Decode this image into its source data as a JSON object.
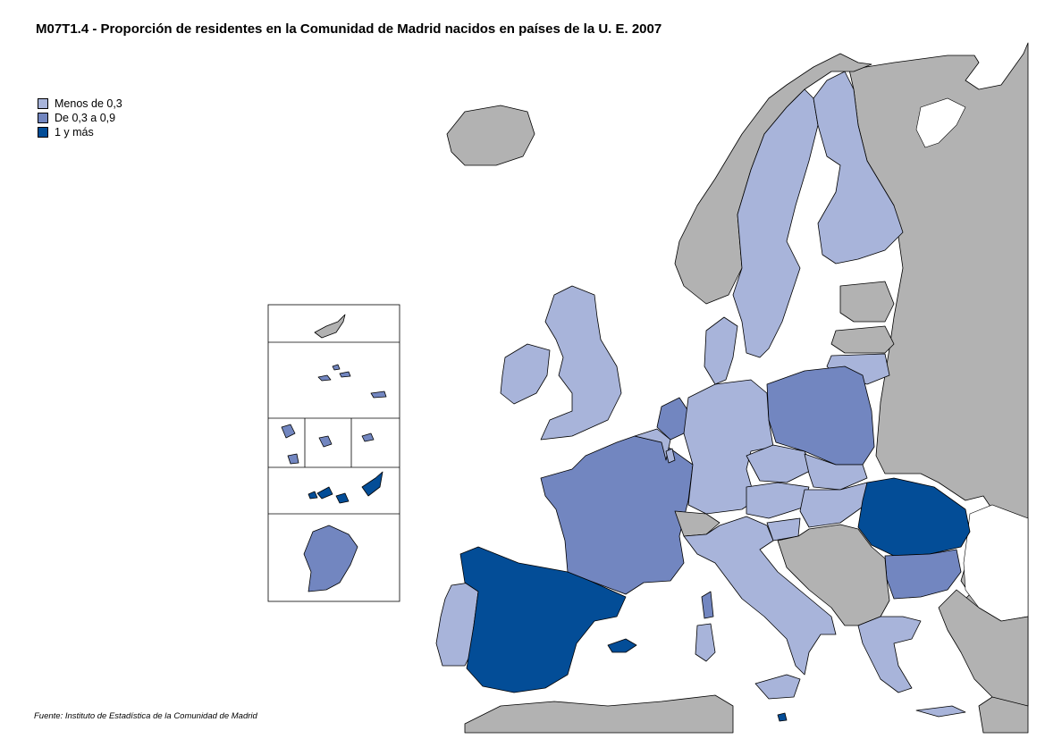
{
  "title": "M07T1.4 - Proporción de residentes en la Comunidad de Madrid nacidos en países de la U. E. 2007",
  "legend": [
    {
      "label": "Menos de 0,3",
      "color": "#a8b4da"
    },
    {
      "label": "De 0,3 a 0,9",
      "color": "#7286c0"
    },
    {
      "label": "1 y más",
      "color": "#034d97"
    }
  ],
  "colors": {
    "non_eu": "#b2b2b2",
    "low": "#a8b4da",
    "mid": "#7286c0",
    "high": "#034d97",
    "sea": "#ffffff",
    "border": "#000000"
  },
  "source": "Fuente: Instituto de Estadística de la Comunidad de Madrid",
  "map_data": {
    "Spain": "high",
    "Romania": "high",
    "Malta": "high",
    "Portugal": "low",
    "France": "mid",
    "Poland": "mid",
    "Bulgaria": "mid",
    "Netherlands": "mid",
    "Germany": "low",
    "Italy": "low",
    "United Kingdom": "low",
    "Ireland": "low",
    "Belgium": "low",
    "Luxembourg": "low",
    "Austria": "low",
    "Czech Republic": "low",
    "Slovakia": "low",
    "Hungary": "low",
    "Slovenia": "low",
    "Greece": "low",
    "Sweden": "low",
    "Finland": "low",
    "Denmark": "low",
    "Lithuania": "low",
    "Latvia": "non_eu",
    "Estonia": "non_eu",
    "Cyprus": "non_eu",
    "Norway": "non_eu",
    "Iceland": "non_eu",
    "Switzerland": "non_eu",
    "Russia": "non_eu",
    "Turkey": "non_eu",
    "Balkans": "non_eu",
    "North Africa": "non_eu",
    "Azores": "mid",
    "Madeira": "mid",
    "Canarias": "high",
    "Guadeloupe / Martinique / Réunion": "mid",
    "French Guiana": "mid"
  }
}
